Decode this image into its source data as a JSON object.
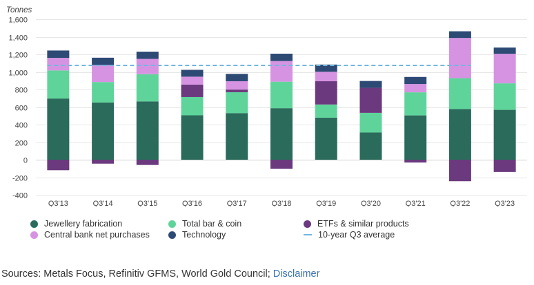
{
  "chart_data": {
    "type": "bar",
    "stacked": true,
    "title": "",
    "ylabel": "Tonnes",
    "xlabel": "",
    "ylim": [
      -400,
      1600
    ],
    "yticks": [
      "-400",
      "-200",
      "0",
      "200",
      "400",
      "600",
      "800",
      "1,000",
      "1,200",
      "1,400",
      "1,600"
    ],
    "ytick_values": [
      -400,
      -200,
      0,
      200,
      400,
      600,
      800,
      1000,
      1200,
      1400,
      1600
    ],
    "grid": true,
    "legend_position": "bottom",
    "categories": [
      "Q3'13",
      "Q3'14",
      "Q3'15",
      "Q3'16",
      "Q3'17",
      "Q3'18",
      "Q3'19",
      "Q3'20",
      "Q3'21",
      "Q3'22",
      "Q3'23"
    ],
    "series": [
      {
        "name": "Jewellery fabrication",
        "color": "#2a6b5b",
        "values": [
          697,
          652,
          664,
          506,
          531,
          587,
          479,
          310,
          505,
          578,
          568
        ]
      },
      {
        "name": "Total bar & coin",
        "color": "#5fd49a",
        "values": [
          320,
          233,
          310,
          208,
          238,
          302,
          150,
          224,
          263,
          351,
          302
        ]
      },
      {
        "name": "ETFs & similar products",
        "color": "#6b3a7e",
        "values": [
          -120,
          -45,
          -60,
          141,
          30,
          -103,
          265,
          285,
          -32,
          -245,
          -140
        ]
      },
      {
        "name": "Central bank net purchases",
        "color": "#d693e2",
        "values": [
          143,
          195,
          175,
          91,
          95,
          235,
          108,
          0,
          94,
          458,
          337
        ]
      },
      {
        "name": "Technology",
        "color": "#2d4a75",
        "values": [
          84,
          82,
          82,
          78,
          84,
          84,
          82,
          78,
          81,
          76,
          71
        ]
      }
    ],
    "reference_line": {
      "name": "10-year Q3 average",
      "value": 1075,
      "color": "#6fb7e0",
      "style": "dashed"
    }
  },
  "sources": {
    "text": "Sources: Metals Focus, Refinitiv GFMS, World Gold Council;",
    "link_text": "Disclaimer"
  }
}
